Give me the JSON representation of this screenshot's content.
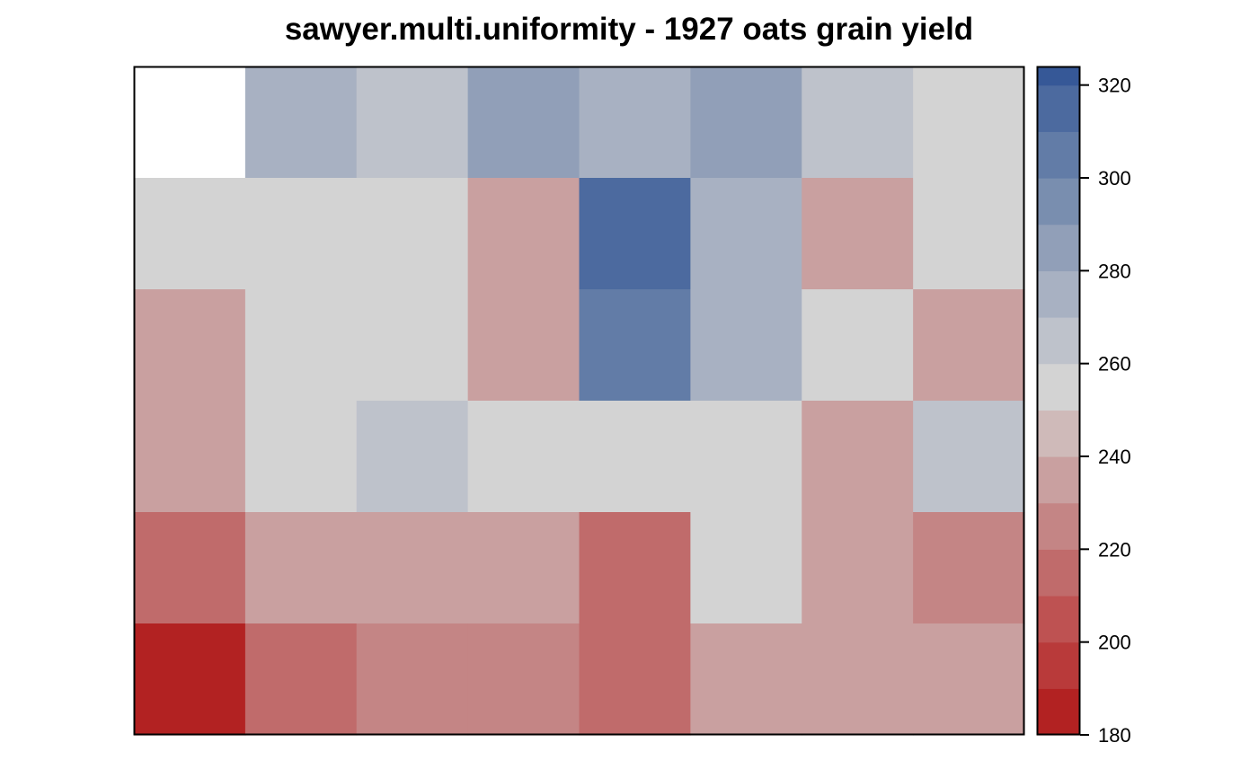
{
  "chart_data": {
    "type": "heatmap",
    "title": "sawyer.multi.uniformity - 1927 oats grain yield",
    "xlabel": "",
    "ylabel": "",
    "rows": 6,
    "cols": 8,
    "values": [
      [
        null,
        278,
        268,
        288,
        278,
        288,
        268,
        258
      ],
      [
        252,
        258,
        258,
        232,
        318,
        278,
        232,
        258
      ],
      [
        232,
        252,
        252,
        238,
        308,
        278,
        258,
        232
      ],
      [
        232,
        252,
        268,
        258,
        258,
        258,
        232,
        268
      ],
      [
        212,
        238,
        238,
        232,
        212,
        258,
        238,
        222
      ],
      [
        182,
        212,
        222,
        222,
        212,
        232,
        232,
        238
      ]
    ],
    "colorbar": {
      "min": 180,
      "max": 324,
      "ticks": [
        180,
        200,
        220,
        240,
        260,
        280,
        300,
        320
      ],
      "bins": [
        {
          "from": 180,
          "to": 190,
          "color": "#B22222"
        },
        {
          "from": 190,
          "to": 200,
          "color": "#B93A3A"
        },
        {
          "from": 200,
          "to": 210,
          "color": "#BE5252"
        },
        {
          "from": 210,
          "to": 220,
          "color": "#C06B6B"
        },
        {
          "from": 220,
          "to": 230,
          "color": "#C48585"
        },
        {
          "from": 230,
          "to": 240,
          "color": "#C9A0A0"
        },
        {
          "from": 240,
          "to": 250,
          "color": "#CFBAB9"
        },
        {
          "from": 250,
          "to": 260,
          "color": "#D3D3D3"
        },
        {
          "from": 260,
          "to": 270,
          "color": "#BEC2CB"
        },
        {
          "from": 270,
          "to": 280,
          "color": "#A8B1C2"
        },
        {
          "from": 280,
          "to": 290,
          "color": "#919FB8"
        },
        {
          "from": 290,
          "to": 300,
          "color": "#798EAF"
        },
        {
          "from": 300,
          "to": 310,
          "color": "#627CA7"
        },
        {
          "from": 310,
          "to": 320,
          "color": "#4C6A9F"
        },
        {
          "from": 320,
          "to": 330,
          "color": "#365897"
        }
      ]
    },
    "missing_color": "#FFFFFF",
    "frame_color": "#000000"
  }
}
